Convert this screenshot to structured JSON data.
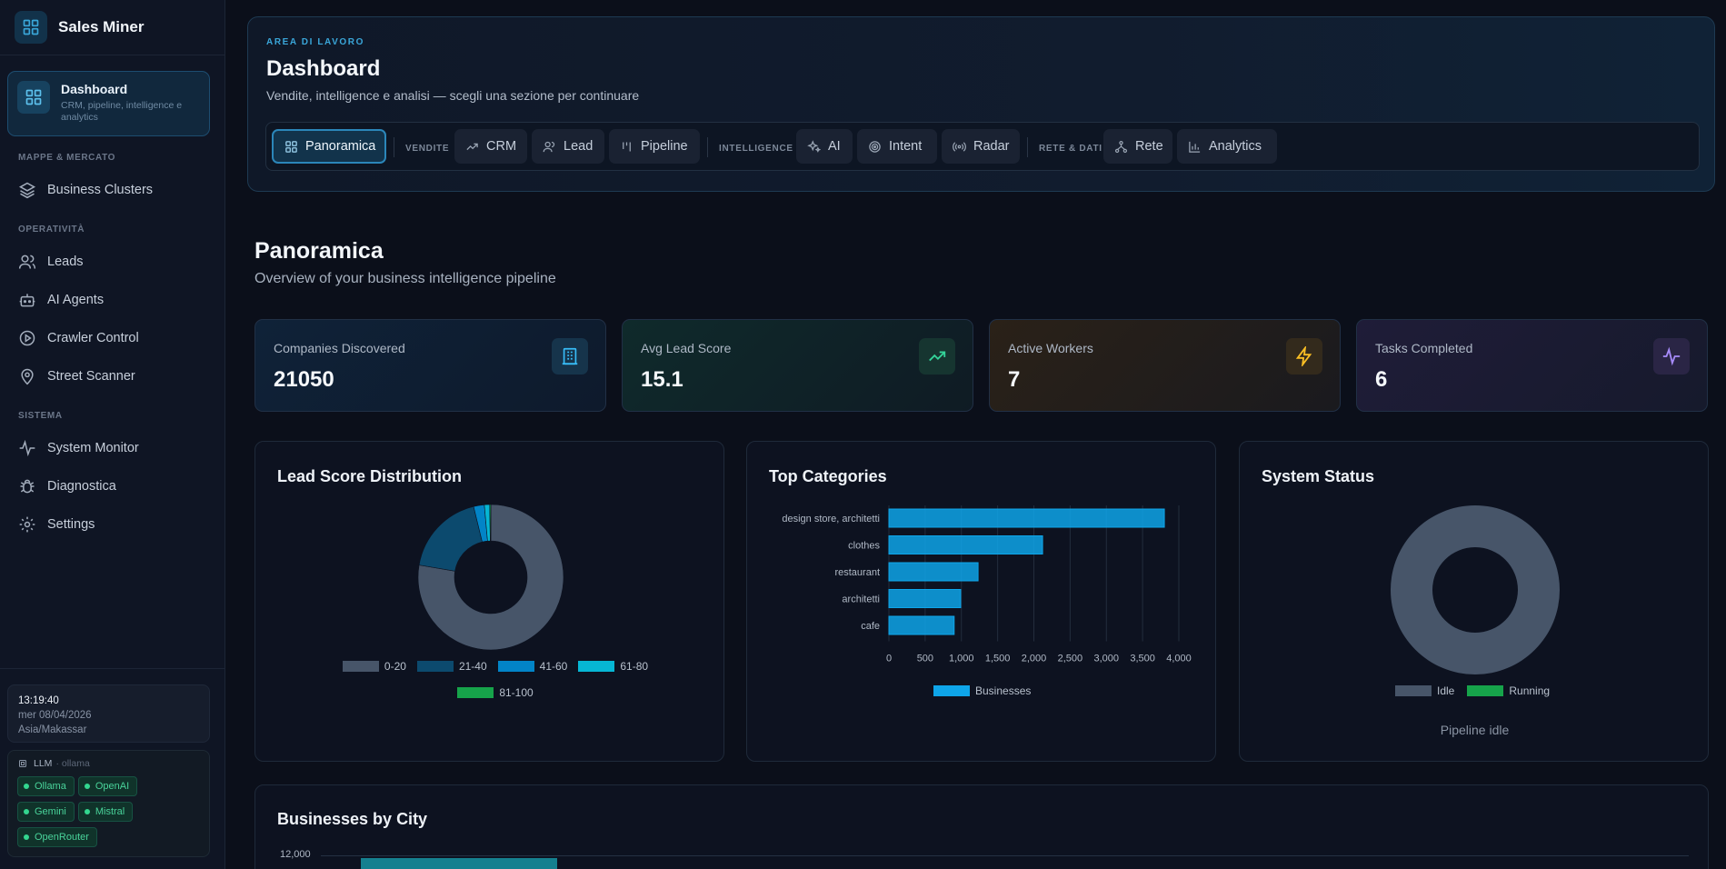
{
  "app": {
    "name": "Sales Miner"
  },
  "sidebar": {
    "active": {
      "label": "Dashboard",
      "desc": "CRM, pipeline, intelligence e analytics"
    },
    "sections": [
      {
        "label": "MAPPE & MERCATO",
        "items": [
          {
            "label": "Business Clusters",
            "icon": "layers-icon"
          }
        ]
      },
      {
        "label": "OPERATIVITÀ",
        "items": [
          {
            "label": "Leads",
            "icon": "users-icon"
          },
          {
            "label": "AI Agents",
            "icon": "bot-icon"
          },
          {
            "label": "Crawler Control",
            "icon": "play-circle-icon"
          },
          {
            "label": "Street Scanner",
            "icon": "map-pin-icon"
          }
        ]
      },
      {
        "label": "SISTEMA",
        "items": [
          {
            "label": "System Monitor",
            "icon": "activity-icon"
          },
          {
            "label": "Diagnostica",
            "icon": "bug-icon"
          },
          {
            "label": "Settings",
            "icon": "gear-icon"
          }
        ]
      }
    ],
    "clock": {
      "time": "13:19:40",
      "date": "mer 08/04/2026",
      "tz": "Asia/Makassar"
    },
    "llm": {
      "label": "LLM",
      "provider": "· ollama",
      "tags": [
        "Ollama",
        "OpenAI",
        "Gemini",
        "Mistral",
        "OpenRouter"
      ]
    }
  },
  "header": {
    "kicker": "AREA DI LAVORO",
    "title": "Dashboard",
    "subtitle": "Vendite, intelligence e analisi — scegli una sezione per continuare",
    "tabs": {
      "overview": "Panoramica",
      "group_sales": "VENDITE",
      "crm": "CRM",
      "lead": "Lead",
      "pipeline": "Pipeline",
      "group_intel": "INTELLIGENCE",
      "ai": "AI",
      "intent": "Intent",
      "radar": "Radar",
      "group_net": "RETE & DATI",
      "network": "Rete",
      "analytics": "Analytics"
    }
  },
  "page": {
    "title": "Panoramica",
    "subtitle": "Overview of your business intelligence pipeline"
  },
  "stats": [
    {
      "label": "Companies Discovered",
      "value": "21050",
      "icon": "building-icon",
      "color": "#38bdf8"
    },
    {
      "label": "Avg Lead Score",
      "value": "15.1",
      "icon": "trending-up-icon",
      "color": "#34d399"
    },
    {
      "label": "Active Workers",
      "value": "7",
      "icon": "zap-icon",
      "color": "#fbbf24"
    },
    {
      "label": "Tasks Completed",
      "value": "6",
      "icon": "activity-icon",
      "color": "#a78bfa"
    }
  ],
  "panels": {
    "lead_score": "Lead Score Distribution",
    "categories": "Top Categories",
    "system": "System Status",
    "city": "Businesses by City",
    "pipeline_status": "Pipeline idle"
  },
  "chart_data": [
    {
      "type": "pie",
      "title": "Lead Score Distribution",
      "categories": [
        "0-20",
        "21-40",
        "41-60",
        "61-80",
        "81-100"
      ],
      "values": [
        16350,
        3900,
        500,
        250,
        50
      ],
      "colors": [
        "#475569",
        "#0c4a6e",
        "#0284c7",
        "#06b6d4",
        "#16a34a"
      ]
    },
    {
      "type": "bar",
      "title": "Top Categories",
      "orientation": "horizontal",
      "categories": [
        "design store, architetti",
        "clothes",
        "restaurant",
        "architetti",
        "cafe"
      ],
      "series": [
        {
          "name": "Businesses",
          "values": [
            3800,
            2120,
            1230,
            990,
            900
          ]
        }
      ],
      "xlim": [
        0,
        4000
      ],
      "ticks": [
        "0",
        "500",
        "1,000",
        "1,500",
        "2,000",
        "2,500",
        "3,000",
        "3,500",
        "4,000"
      ],
      "color": "#0ea5e9"
    },
    {
      "type": "pie",
      "title": "System Status",
      "categories": [
        "Idle",
        "Running"
      ],
      "values": [
        1,
        0
      ],
      "colors": [
        "#475569",
        "#16a34a"
      ]
    },
    {
      "type": "bar",
      "title": "Businesses by City",
      "ytick_top": "12,000"
    }
  ]
}
